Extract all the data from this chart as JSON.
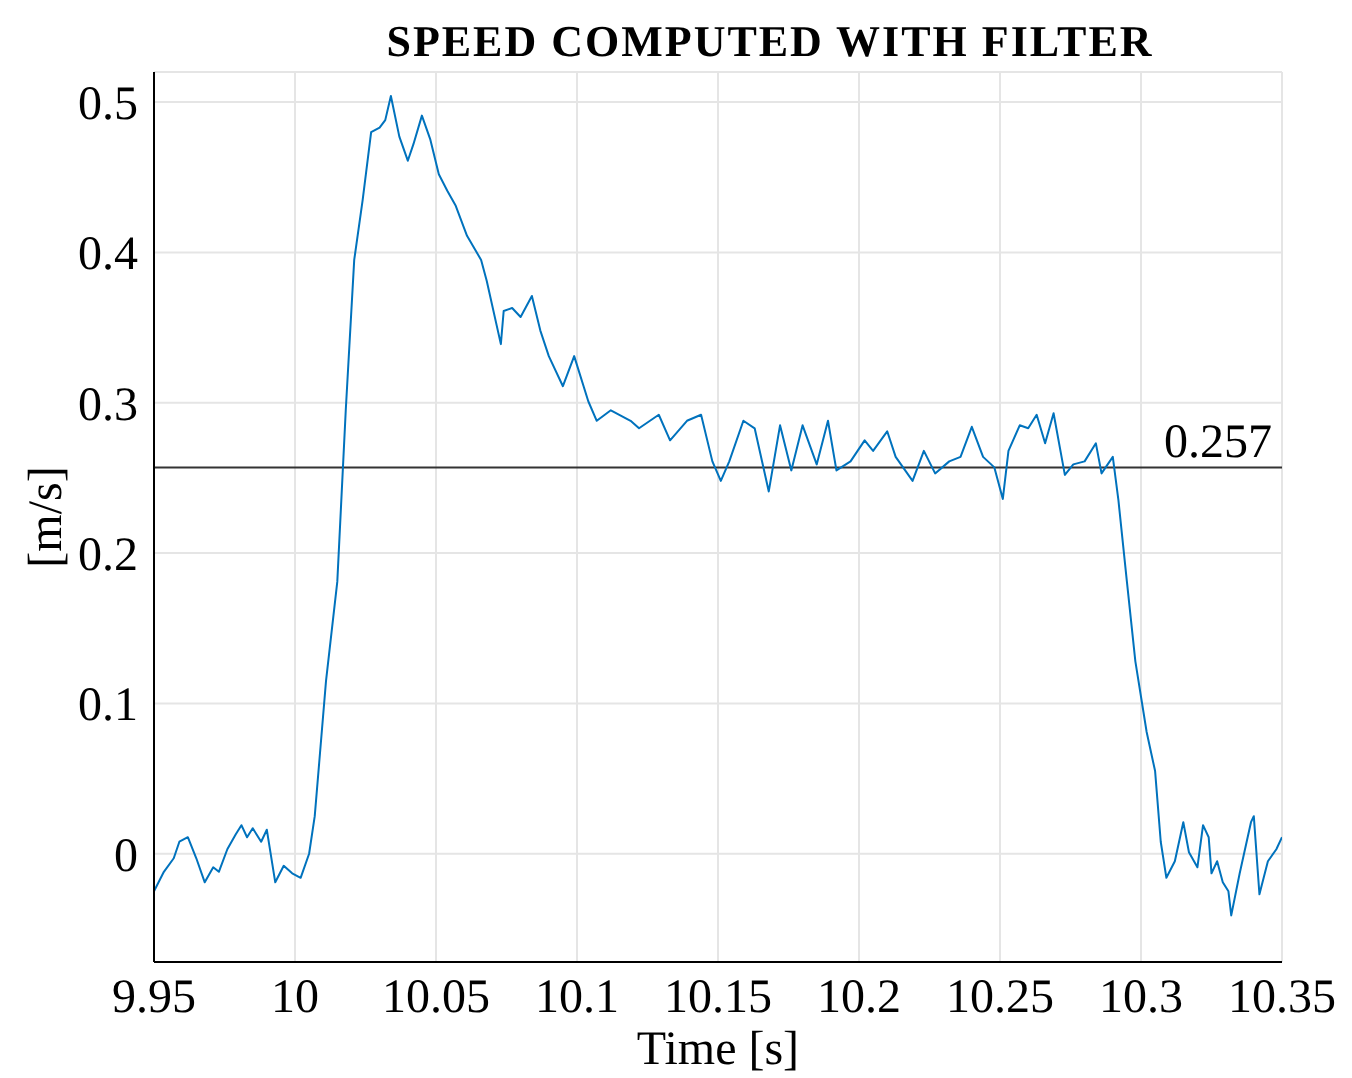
{
  "chart_data": {
    "type": "line",
    "title": "SPEED COMPUTED WITH FILTER",
    "xlabel": "Time [s]",
    "ylabel": "[m/s]",
    "x": [
      9.95,
      9.9535,
      9.957,
      9.959,
      9.962,
      9.965,
      9.968,
      9.971,
      9.973,
      9.976,
      9.979,
      9.981,
      9.983,
      9.985,
      9.988,
      9.99,
      9.993,
      9.996,
      9.999,
      10.002,
      10.005,
      10.007,
      10.011,
      10.015,
      10.018,
      10.021,
      10.024,
      10.027,
      10.03,
      10.032,
      10.034,
      10.037,
      10.04,
      10.042,
      10.045,
      10.048,
      10.051,
      10.054,
      10.057,
      10.061,
      10.066,
      10.068,
      10.073,
      10.074,
      10.077,
      10.08,
      10.084,
      10.087,
      10.09,
      10.095,
      10.099,
      10.104,
      10.107,
      10.112,
      10.119,
      10.122,
      10.129,
      10.133,
      10.139,
      10.144,
      10.148,
      10.151,
      10.154,
      10.159,
      10.163,
      10.168,
      10.172,
      10.176,
      10.18,
      10.185,
      10.189,
      10.192,
      10.197,
      10.202,
      10.205,
      10.21,
      10.213,
      10.219,
      10.223,
      10.227,
      10.232,
      10.236,
      10.24,
      10.244,
      10.248,
      10.251,
      10.253,
      10.257,
      10.26,
      10.263,
      10.266,
      10.269,
      10.273,
      10.276,
      10.28,
      10.284,
      10.286,
      10.29,
      10.292,
      10.295,
      10.298,
      10.302,
      10.305,
      10.307,
      10.309,
      10.312,
      10.315,
      10.317,
      10.32,
      10.322,
      10.324,
      10.325,
      10.327,
      10.329,
      10.331,
      10.332,
      10.335,
      10.339,
      10.34,
      10.342,
      10.345,
      10.348,
      10.35
    ],
    "series": [
      {
        "color": "#0072bd",
        "values": [
          -0.025,
          -0.012,
          -0.003,
          0.008,
          0.011,
          -0.003,
          -0.019,
          -0.009,
          -0.012,
          0.003,
          0.013,
          0.019,
          0.011,
          0.017,
          0.008,
          0.016,
          -0.019,
          -0.008,
          -0.013,
          -0.016,
          0,
          0.025,
          0.115,
          0.181,
          0.295,
          0.395,
          0.435,
          0.48,
          0.483,
          0.488,
          0.504,
          0.477,
          0.461,
          0.472,
          0.491,
          0.475,
          0.452,
          0.441,
          0.431,
          0.411,
          0.395,
          0.381,
          0.339,
          0.361,
          0.363,
          0.357,
          0.371,
          0.348,
          0.331,
          0.311,
          0.331,
          0.301,
          0.288,
          0.295,
          0.288,
          0.283,
          0.292,
          0.275,
          0.288,
          0.292,
          0.261,
          0.248,
          0.261,
          0.288,
          0.283,
          0.241,
          0.285,
          0.255,
          0.285,
          0.259,
          0.288,
          0.255,
          0.261,
          0.275,
          0.268,
          0.281,
          0.264,
          0.248,
          0.268,
          0.253,
          0.261,
          0.264,
          0.284,
          0.264,
          0.257,
          0.236,
          0.268,
          0.285,
          0.283,
          0.292,
          0.273,
          0.293,
          0.252,
          0.259,
          0.261,
          0.273,
          0.253,
          0.264,
          0.235,
          0.181,
          0.128,
          0.081,
          0.055,
          0.008,
          -0.016,
          -0.005,
          0.021,
          0.001,
          -0.009,
          0.019,
          0.011,
          -0.013,
          -0.005,
          -0.019,
          -0.025,
          -0.041,
          -0.013,
          0.021,
          0.025,
          -0.027,
          -0.005,
          0.003,
          0.011
        ]
      }
    ],
    "xlim": [
      9.95,
      10.35
    ],
    "xticks": [
      9.95,
      10,
      10.05,
      10.1,
      10.15,
      10.2,
      10.25,
      10.3,
      10.35
    ],
    "ylim": [
      -0.072,
      0.52
    ],
    "yticks": [
      0,
      0.1,
      0.2,
      0.3,
      0.4,
      0.5
    ],
    "ref_lines": [
      {
        "axis": "y",
        "value": 0.257,
        "label": "0.257",
        "color": "#333333"
      }
    ],
    "grid": true,
    "marker": "none",
    "line_style": "solid"
  }
}
